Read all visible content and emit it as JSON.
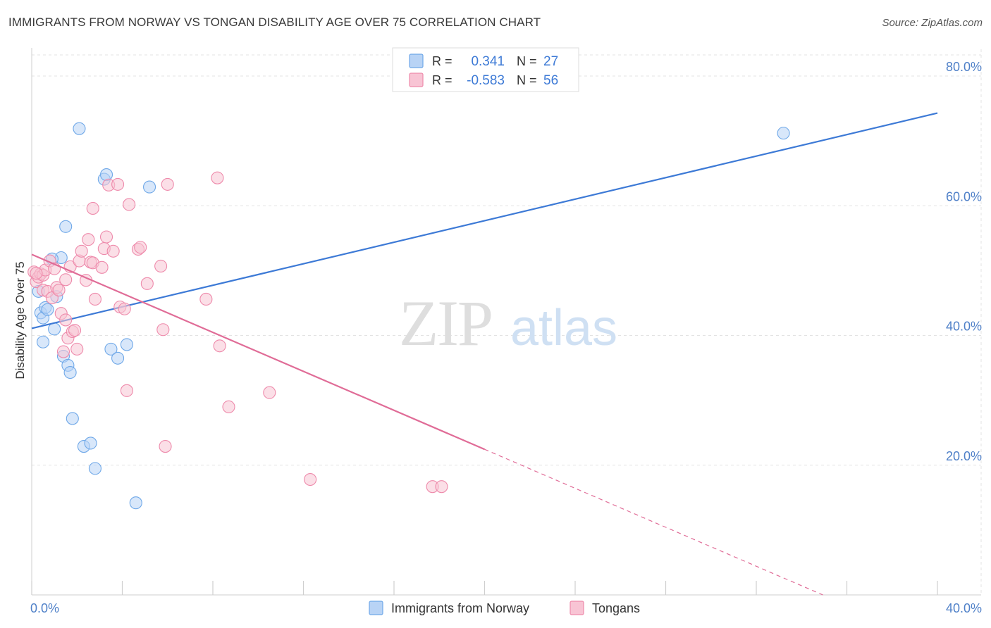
{
  "header": {
    "title": "IMMIGRANTS FROM NORWAY VS TONGAN DISABILITY AGE OVER 75 CORRELATION CHART",
    "source": "Source: ZipAtlas.com"
  },
  "watermark": {
    "zip": "ZIP",
    "atlas": "atlas"
  },
  "colors": {
    "blue": "#6fa8e8",
    "blue_fill": "#b8d3f5",
    "blue_line": "#3d7ad6",
    "pink": "#ee8aab",
    "pink_fill": "#f8c4d4",
    "pink_line": "#e06c97",
    "tick_label": "#4f80c8",
    "grid": "#e3e3e3"
  },
  "legend": {
    "rows": [
      {
        "r_label": "R =",
        "r_value": "0.341",
        "n_label": "N =",
        "n_value": "27"
      },
      {
        "r_label": "R =",
        "r_value": "-0.583",
        "n_label": "N =",
        "n_value": "56"
      }
    ]
  },
  "chart_data": {
    "type": "scatter",
    "title": "IMMIGRANTS FROM NORWAY VS TONGAN DISABILITY AGE OVER 75 CORRELATION CHART",
    "xlabel": "",
    "ylabel": "Disability Age Over 75",
    "xlim": [
      0,
      40
    ],
    "ylim": [
      0,
      85
    ],
    "x_tick_labels": [
      "0.0%",
      "40.0%"
    ],
    "y_ticks": [
      20,
      40,
      60,
      80
    ],
    "y_tick_labels": [
      "20.0%",
      "40.0%",
      "60.0%",
      "80.0%"
    ],
    "grid": true,
    "legend_position": "bottom",
    "series": [
      {
        "name": "Immigrants from Norway",
        "color": "blue",
        "r": 0.341,
        "n": 27,
        "trend": {
          "x0": 0,
          "y0": 41.1,
          "x1": 40,
          "y1": 74.3,
          "dash_from": null
        },
        "points": [
          [
            0.3,
            46.8
          ],
          [
            0.4,
            43.5
          ],
          [
            0.5,
            42.7
          ],
          [
            0.5,
            39.0
          ],
          [
            0.6,
            44.3
          ],
          [
            0.7,
            44.0
          ],
          [
            1.0,
            41.0
          ],
          [
            1.1,
            46.0
          ],
          [
            1.3,
            52.0
          ],
          [
            1.4,
            36.8
          ],
          [
            1.5,
            56.8
          ],
          [
            1.6,
            35.4
          ],
          [
            1.7,
            34.3
          ],
          [
            1.8,
            27.2
          ],
          [
            2.1,
            71.9
          ],
          [
            2.3,
            22.9
          ],
          [
            2.6,
            23.4
          ],
          [
            2.8,
            19.5
          ],
          [
            3.2,
            64.1
          ],
          [
            3.3,
            64.8
          ],
          [
            3.5,
            37.9
          ],
          [
            3.8,
            36.5
          ],
          [
            4.2,
            38.6
          ],
          [
            4.6,
            14.2
          ],
          [
            5.2,
            62.9
          ],
          [
            33.2,
            71.2
          ],
          [
            0.9,
            51.8
          ]
        ]
      },
      {
        "name": "Tongans",
        "color": "pink",
        "r": -0.583,
        "n": 56,
        "trend": {
          "x0": 0,
          "y0": 52.5,
          "x1": 40,
          "y1": -7.6,
          "dash_from": 20
        },
        "points": [
          [
            0.1,
            49.8
          ],
          [
            0.2,
            48.3
          ],
          [
            0.3,
            49.0
          ],
          [
            0.4,
            49.5
          ],
          [
            0.5,
            47.0
          ],
          [
            0.5,
            49.3
          ],
          [
            0.6,
            50.1
          ],
          [
            0.7,
            46.8
          ],
          [
            0.8,
            51.5
          ],
          [
            0.9,
            45.8
          ],
          [
            1.0,
            50.3
          ],
          [
            1.1,
            47.4
          ],
          [
            1.2,
            47.0
          ],
          [
            1.3,
            43.4
          ],
          [
            1.4,
            37.5
          ],
          [
            1.5,
            48.6
          ],
          [
            1.5,
            42.4
          ],
          [
            1.6,
            39.6
          ],
          [
            1.7,
            50.6
          ],
          [
            1.8,
            40.6
          ],
          [
            1.9,
            40.8
          ],
          [
            2.0,
            37.9
          ],
          [
            2.1,
            51.5
          ],
          [
            2.2,
            53.0
          ],
          [
            2.4,
            48.5
          ],
          [
            2.5,
            54.8
          ],
          [
            2.6,
            51.3
          ],
          [
            2.7,
            51.2
          ],
          [
            2.7,
            59.6
          ],
          [
            2.8,
            45.6
          ],
          [
            3.1,
            50.5
          ],
          [
            3.2,
            53.4
          ],
          [
            3.3,
            55.2
          ],
          [
            3.4,
            63.2
          ],
          [
            3.6,
            53.0
          ],
          [
            3.8,
            63.3
          ],
          [
            3.9,
            44.4
          ],
          [
            4.1,
            44.1
          ],
          [
            4.2,
            31.5
          ],
          [
            4.3,
            60.2
          ],
          [
            4.7,
            53.3
          ],
          [
            4.8,
            53.6
          ],
          [
            5.1,
            48.0
          ],
          [
            5.7,
            50.7
          ],
          [
            5.8,
            40.9
          ],
          [
            5.9,
            22.9
          ],
          [
            6.0,
            63.3
          ],
          [
            7.7,
            45.6
          ],
          [
            8.2,
            64.3
          ],
          [
            8.3,
            38.4
          ],
          [
            8.7,
            29.0
          ],
          [
            10.5,
            31.2
          ],
          [
            12.3,
            17.8
          ],
          [
            17.7,
            16.7
          ],
          [
            18.1,
            16.7
          ],
          [
            0.2,
            49.6
          ]
        ]
      }
    ]
  }
}
